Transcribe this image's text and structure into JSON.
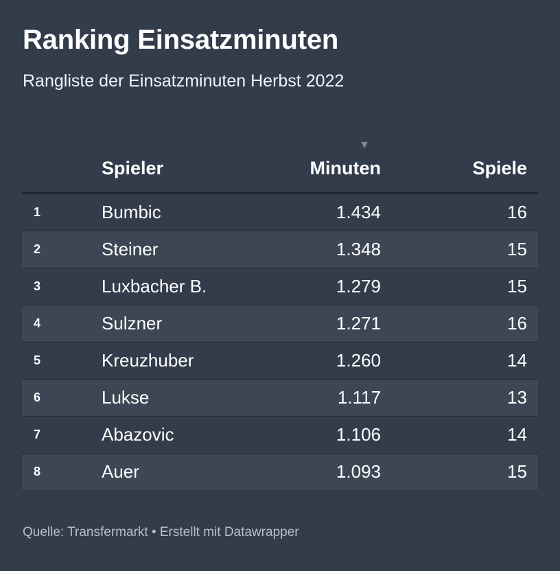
{
  "header": {
    "title": "Ranking Einsatzminuten",
    "subtitle": "Rangliste der Einsatzminuten Herbst 2022"
  },
  "footer": {
    "source": "Quelle: Transfermarkt • Erstellt mit Datawrapper"
  },
  "icons": {
    "sort": "sort-descending-icon"
  },
  "chart_data": {
    "type": "table",
    "sort": {
      "column": "Minuten",
      "direction": "descending"
    },
    "columns": [
      "",
      "Spieler",
      "Minuten",
      "Spiele"
    ],
    "rows": [
      {
        "rank": "1",
        "player": "Bumbic",
        "minutes": "1.434",
        "games": "16"
      },
      {
        "rank": "2",
        "player": "Steiner",
        "minutes": "1.348",
        "games": "15"
      },
      {
        "rank": "3",
        "player": "Luxbacher B.",
        "minutes": "1.279",
        "games": "15"
      },
      {
        "rank": "4",
        "player": "Sulzner",
        "minutes": "1.271",
        "games": "16"
      },
      {
        "rank": "5",
        "player": "Kreuzhuber",
        "minutes": "1.260",
        "games": "14"
      },
      {
        "rank": "6",
        "player": "Lukse",
        "minutes": "1.117",
        "games": "13"
      },
      {
        "rank": "7",
        "player": "Abazovic",
        "minutes": "1.106",
        "games": "14"
      },
      {
        "rank": "8",
        "player": "Auer",
        "minutes": "1.093",
        "games": "15"
      }
    ]
  },
  "colors": {
    "background": "#333c4b",
    "row_alt": "#3d4654",
    "rule": "#22272f",
    "text": "#ffffff",
    "muted": "#b9bfc9"
  }
}
